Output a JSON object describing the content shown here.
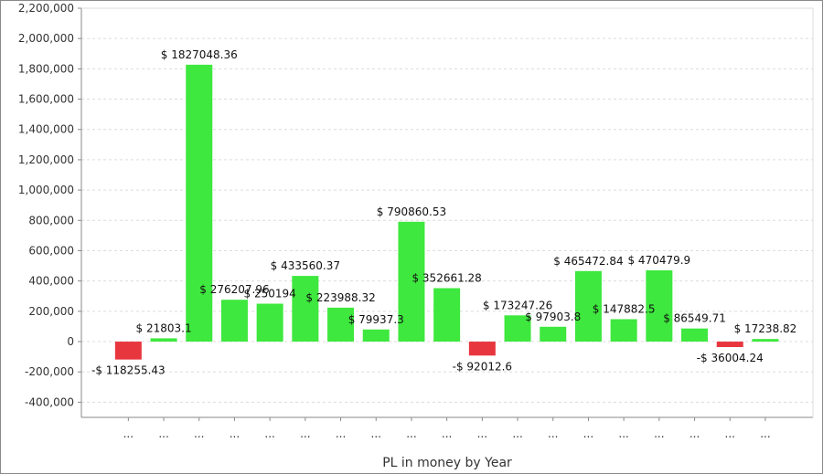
{
  "chart_data": {
    "type": "bar",
    "title": "",
    "xlabel": "PL in money by Year",
    "ylabel": "",
    "ylim": [
      -500000,
      2200000
    ],
    "yticks": [
      -400000,
      -200000,
      0,
      200000,
      400000,
      600000,
      800000,
      1000000,
      1200000,
      1400000,
      1600000,
      1800000,
      2000000,
      2200000
    ],
    "ytick_labels": [
      "-400,000",
      "-200,000",
      "0",
      "200,000",
      "400,000",
      "600,000",
      "800,000",
      "1,000,000",
      "1,200,000",
      "1,400,000",
      "1,600,000",
      "1,800,000",
      "2,000,000",
      "2,200,000"
    ],
    "grid": true,
    "categories": [
      "...",
      "...",
      "...",
      "...",
      "...",
      "...",
      "...",
      "...",
      "...",
      "...",
      "...",
      "...",
      "...",
      "...",
      "...",
      "...",
      "...",
      "...",
      "..."
    ],
    "values": [
      -118255.43,
      21803.1,
      1827048.36,
      276207.96,
      250194,
      433560.37,
      223988.32,
      79937.3,
      790860.53,
      352661.28,
      -92012.6,
      173247.26,
      97903.8,
      465472.84,
      147882.5,
      470479.9,
      86549.71,
      -36004.24,
      17238.82
    ],
    "data_labels": [
      "-$ 118255.43",
      "$ 21803.1",
      "$ 1827048.36",
      "$ 276207.96",
      "$ 250194",
      "$ 433560.37",
      "$ 223988.32",
      "$ 79937.3",
      "$ 790860.53",
      "$ 352661.28",
      "-$ 92012.6",
      "$ 173247.26",
      "$ 97903.8",
      "$ 465472.84",
      "$ 147882.5",
      "$ 470479.9",
      "$ 86549.71",
      "-$ 36004.24",
      "$ 17238.82"
    ],
    "colors": {
      "positive": "#3ee83e",
      "negative": "#e8363e",
      "grid": "#dcdcdc",
      "axis": "#8a8a8a"
    }
  }
}
